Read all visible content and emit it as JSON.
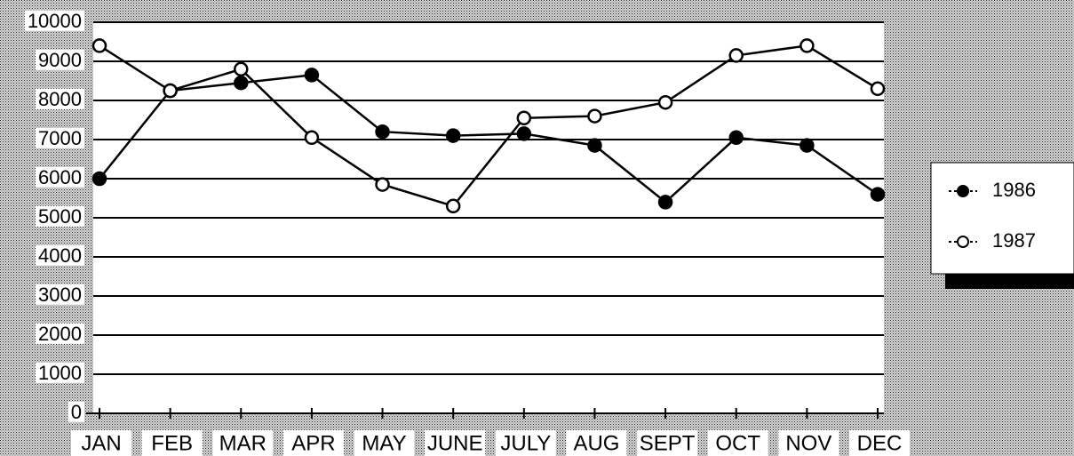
{
  "chart_data": {
    "type": "line",
    "categories": [
      "JAN",
      "FEB",
      "MAR",
      "APR",
      "MAY",
      "JUNE",
      "JULY",
      "AUG",
      "SEPT",
      "OCT",
      "NOV",
      "DEC"
    ],
    "series": [
      {
        "name": "1986",
        "color": "#000000",
        "marker": "filled",
        "values": [
          6000,
          8250,
          8450,
          8650,
          7200,
          7100,
          7150,
          6850,
          5400,
          7050,
          6850,
          5600
        ]
      },
      {
        "name": "1987",
        "color": "#000000",
        "marker": "open",
        "values": [
          9400,
          8250,
          8800,
          7050,
          5850,
          5300,
          7550,
          7600,
          7950,
          9150,
          9400,
          8300
        ]
      }
    ],
    "ylim": [
      0,
      10000
    ],
    "yticks": [
      0,
      1000,
      2000,
      3000,
      4000,
      5000,
      6000,
      7000,
      8000,
      9000,
      10000
    ],
    "grid": true,
    "legend": "right"
  }
}
